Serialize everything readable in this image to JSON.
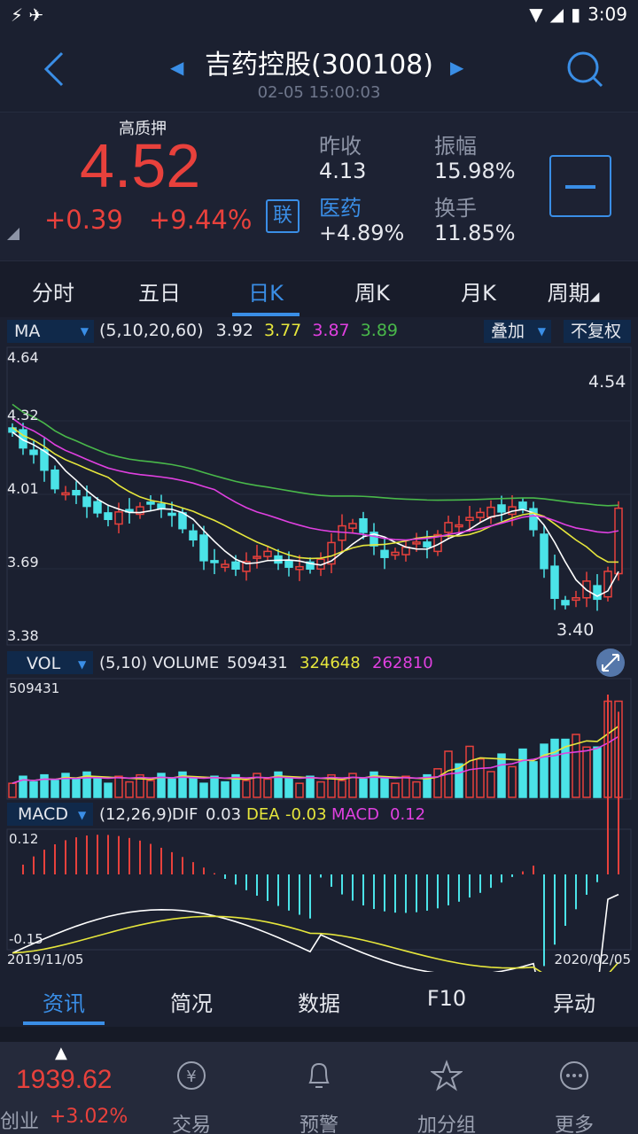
{
  "status": {
    "time": "3:09"
  },
  "header": {
    "title": "吉药控股(300108)",
    "datetime": "02-05 15:00:03"
  },
  "quote": {
    "tag": "高质押",
    "price": "4.52",
    "change": "+0.39",
    "pct": "+9.44%",
    "link_label": "联",
    "prev_close_label": "昨收",
    "prev_close": "4.13",
    "amplitude_label": "振幅",
    "amplitude": "15.98%",
    "sector_label": "医药",
    "sector_change": "+4.89%",
    "turnover_label": "换手",
    "turnover": "11.85%"
  },
  "tabs": [
    "分时",
    "五日",
    "日K",
    "周K",
    "月K",
    "周期"
  ],
  "ma": {
    "selector": "MA",
    "params": "(5,10,20,60)",
    "v1": "3.92",
    "v2": "3.77",
    "v3": "3.87",
    "v4": "3.89",
    "overlay": "叠加",
    "adjust": "不复权",
    "ticks": [
      "4.64",
      "4.32",
      "4.01",
      "3.69",
      "3.38"
    ],
    "high_label": "4.54",
    "low_label": "3.40"
  },
  "vol": {
    "selector": "VOL",
    "params": "(5,10) VOLUME",
    "v1": "509431",
    "v2": "324648",
    "v3": "262810",
    "top": "509431"
  },
  "macd": {
    "selector": "MACD",
    "params": "(12,26,9)",
    "dif_label": "DIF",
    "dif": "0.03",
    "dea_label": "DEA",
    "dea": "-0.03",
    "macd_label": "MACD",
    "macd": "0.12",
    "top": "0.12",
    "bottom": "-0.15",
    "date_start": "2019/11/05",
    "date_end": "2020/02/05"
  },
  "bottom_tabs": [
    "资讯",
    "简况",
    "数据",
    "F10",
    "异动"
  ],
  "nav": {
    "index_value": "1939.62",
    "index_name": "创业",
    "index_change": "+3.02%",
    "items": [
      "交易",
      "预警",
      "加分组",
      "更多"
    ]
  },
  "colors": {
    "up": "#e8413c",
    "down": "#4be3e8",
    "ma5": "#ffffff",
    "ma10": "#e6e63c",
    "ma20": "#e040e0",
    "ma60": "#49b84a",
    "accent": "#3a8ee6"
  }
}
